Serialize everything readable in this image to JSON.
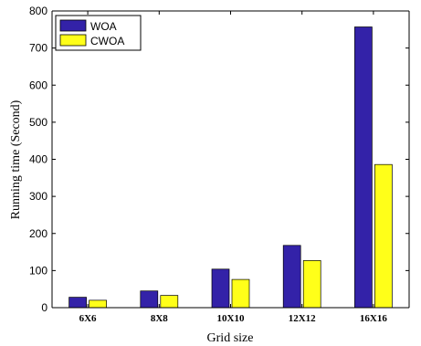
{
  "chart_data": {
    "type": "bar",
    "title": "",
    "xlabel": "Grid size",
    "ylabel": "Running time (Second)",
    "categories": [
      "6X6",
      "8X8",
      "10X10",
      "12X12",
      "16X16"
    ],
    "series": [
      {
        "name": "WOA",
        "color": "#3322a8",
        "values": [
          28,
          45,
          104,
          168,
          757
        ]
      },
      {
        "name": "CWOA",
        "color": "#ffff19",
        "values": [
          20,
          33,
          76,
          127,
          386
        ]
      }
    ],
    "ylim": [
      0,
      800
    ],
    "yticks": [
      0,
      100,
      200,
      300,
      400,
      500,
      600,
      700,
      800
    ],
    "grid": false,
    "legend": "top-left"
  }
}
